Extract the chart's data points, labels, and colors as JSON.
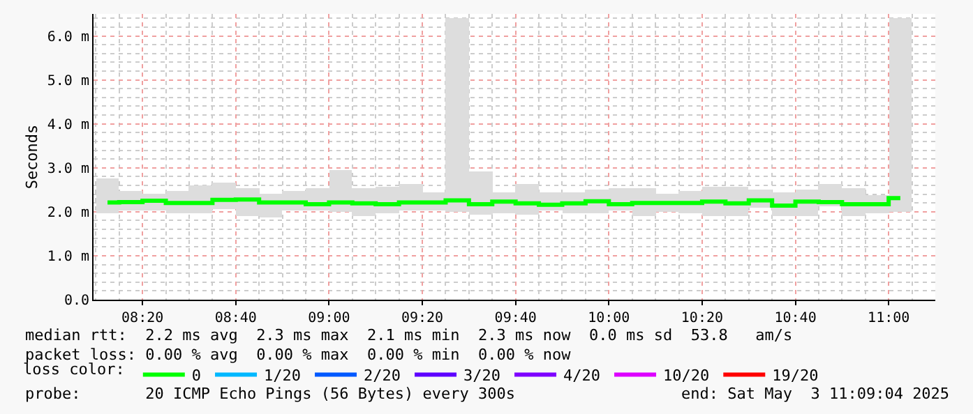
{
  "chart_data": {
    "type": "step",
    "ylabel": "Seconds",
    "x": [
      "2025-05-03T08:12:30",
      "2025-05-03T08:17:30",
      "2025-05-03T08:22:30",
      "2025-05-03T08:27:30",
      "2025-05-03T08:32:30",
      "2025-05-03T08:37:30",
      "2025-05-03T08:42:30",
      "2025-05-03T08:47:30",
      "2025-05-03T08:52:30",
      "2025-05-03T08:57:30",
      "2025-05-03T09:02:30",
      "2025-05-03T09:07:30",
      "2025-05-03T09:12:30",
      "2025-05-03T09:17:30",
      "2025-05-03T09:22:30",
      "2025-05-03T09:27:30",
      "2025-05-03T09:32:30",
      "2025-05-03T09:37:30",
      "2025-05-03T09:42:30",
      "2025-05-03T09:47:30",
      "2025-05-03T09:52:30",
      "2025-05-03T09:57:30",
      "2025-05-03T10:02:30",
      "2025-05-03T10:07:30",
      "2025-05-03T10:12:30",
      "2025-05-03T10:17:30",
      "2025-05-03T10:22:30",
      "2025-05-03T10:27:30",
      "2025-05-03T10:32:30",
      "2025-05-03T10:37:30",
      "2025-05-03T10:42:30",
      "2025-05-03T10:47:30",
      "2025-05-03T10:52:30",
      "2025-05-03T10:57:30",
      "2025-05-03T11:02:30"
    ],
    "series": [
      {
        "type": "bar",
        "color": "#dddddd",
        "base": [
          1.98,
          2.02,
          2.03,
          1.98,
          1.98,
          2.06,
          1.89,
          1.87,
          2.03,
          2.03,
          2.0,
          1.9,
          1.96,
          2.03,
          2.03,
          2.0,
          1.94,
          1.96,
          1.93,
          2.03,
          1.98,
          1.98,
          2.02,
          1.91,
          2.0,
          1.98,
          1.89,
          1.91,
          2.09,
          1.89,
          1.89,
          2.11,
          1.89,
          1.98,
          2.0
        ],
        "values": [
          0.79,
          0.45,
          0.37,
          0.49,
          0.62,
          0.6,
          0.64,
          0.53,
          0.44,
          0.5,
          0.95,
          0.63,
          0.61,
          0.59,
          0.42,
          4.4,
          0.97,
          0.47,
          0.69,
          0.42,
          0.47,
          0.51,
          0.53,
          0.64,
          0.4,
          0.49,
          0.68,
          0.66,
          0.42,
          0.56,
          0.62,
          0.51,
          0.66,
          0.4,
          4.4
        ]
      },
      {
        "name": "0",
        "color": "#00ff00",
        "values": [
          2.21,
          2.22,
          2.25,
          2.2,
          2.2,
          2.27,
          2.28,
          2.21,
          2.21,
          2.17,
          2.21,
          2.19,
          2.17,
          2.21,
          2.21,
          2.26,
          2.17,
          2.23,
          2.19,
          2.16,
          2.19,
          2.24,
          2.17,
          2.2,
          2.2,
          2.2,
          2.23,
          2.19,
          2.26,
          2.14,
          2.23,
          2.22,
          2.17,
          2.17,
          2.31
        ]
      },
      {
        "name": "1/20",
        "color": "#00b8ff",
        "values": [
          null,
          null,
          null,
          null,
          null,
          null,
          null,
          null,
          null,
          null,
          null,
          null,
          null,
          null,
          null,
          null,
          null,
          null,
          null,
          null,
          null,
          null,
          null,
          null,
          null,
          null,
          null,
          null,
          null,
          null,
          null,
          null,
          null,
          null,
          null
        ]
      },
      {
        "name": "2/20",
        "color": "#0059ff",
        "values": [
          null,
          null,
          null,
          null,
          null,
          null,
          null,
          null,
          null,
          null,
          null,
          null,
          null,
          null,
          null,
          null,
          null,
          null,
          null,
          null,
          null,
          null,
          null,
          null,
          null,
          null,
          null,
          null,
          null,
          null,
          null,
          null,
          null,
          null,
          null
        ]
      },
      {
        "name": "3/20",
        "color": "#5e00ff",
        "values": [
          null,
          null,
          null,
          null,
          null,
          null,
          null,
          null,
          null,
          null,
          null,
          null,
          null,
          null,
          null,
          null,
          null,
          null,
          null,
          null,
          null,
          null,
          null,
          null,
          null,
          null,
          null,
          null,
          null,
          null,
          null,
          null,
          null,
          null,
          null
        ]
      },
      {
        "name": "4/20",
        "color": "#7e00ff",
        "values": [
          null,
          null,
          null,
          null,
          null,
          null,
          null,
          null,
          null,
          null,
          null,
          null,
          null,
          null,
          null,
          null,
          null,
          null,
          null,
          null,
          null,
          null,
          null,
          null,
          null,
          null,
          null,
          null,
          null,
          null,
          null,
          null,
          null,
          null,
          null
        ]
      },
      {
        "name": "10/20",
        "color": "#dd00ff",
        "values": [
          null,
          null,
          null,
          null,
          null,
          null,
          null,
          null,
          null,
          null,
          null,
          null,
          null,
          null,
          null,
          null,
          null,
          null,
          null,
          null,
          null,
          null,
          null,
          null,
          null,
          null,
          null,
          null,
          null,
          null,
          null,
          null,
          null,
          null,
          null
        ]
      },
      {
        "name": "19/20",
        "color": "#ff0000",
        "values": [
          null,
          null,
          null,
          null,
          null,
          null,
          null,
          null,
          null,
          null,
          null,
          null,
          null,
          null,
          null,
          null,
          null,
          null,
          null,
          null,
          null,
          null,
          null,
          null,
          null,
          null,
          null,
          null,
          null,
          null,
          null,
          null,
          null,
          null,
          null
        ]
      }
    ],
    "legend_title": "loss color:",
    "legend": "bottom",
    "grid": true,
    "xlim": [
      "2025-05-03T08:09:30",
      "2025-05-03T11:10:00"
    ],
    "xticks": [
      {
        "value": "2025-05-03T08:20",
        "label": "08:20"
      },
      {
        "value": "2025-05-03T08:40",
        "label": "08:40"
      },
      {
        "value": "2025-05-03T09:00",
        "label": "09:00"
      },
      {
        "value": "2025-05-03T09:20",
        "label": "09:20"
      },
      {
        "value": "2025-05-03T09:40",
        "label": "09:40"
      },
      {
        "value": "2025-05-03T10:00",
        "label": "10:00"
      },
      {
        "value": "2025-05-03T10:20",
        "label": "10:20"
      },
      {
        "value": "2025-05-03T10:40",
        "label": "10:40"
      },
      {
        "value": "2025-05-03T11:00",
        "label": "11:00"
      }
    ],
    "ylim": [
      0,
      6.5
    ],
    "yticks": [
      {
        "value": 0,
        "label": "0.0"
      },
      {
        "value": 1,
        "label": "1.0 m"
      },
      {
        "value": 2,
        "label": "2.0 m"
      },
      {
        "value": 3,
        "label": "3.0 m"
      },
      {
        "value": 4,
        "label": "4.0 m"
      },
      {
        "value": 5,
        "label": "5.0 m"
      },
      {
        "value": 6,
        "label": "6.0 m"
      }
    ],
    "annotations": [
      "median rtt:  2.2 ms avg  2.3 ms max  2.1 ms min  2.3 ms now  0.0 ms sd  53.8   am/s",
      "packet loss: 0.00 % avg  0.00 % max  0.00 % min  0.00 % now",
      "probe:       20 ICMP Echo Pings (56 Bytes) every 300s",
      "end: Sat May  3 11:09:04 2025"
    ]
  }
}
